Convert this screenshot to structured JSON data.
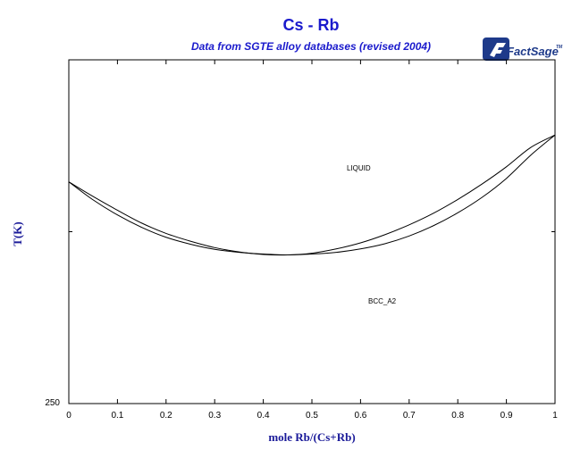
{
  "chart_data": {
    "type": "line",
    "title": "Cs - Rb",
    "subtitle": "Data from SGTE alloy databases (revised 2004)",
    "xlabel": "mole Rb/(Cs+Rb)",
    "ylabel": "T(K)",
    "xlim": [
      0,
      1
    ],
    "ylim": [
      250,
      330
    ],
    "x_ticks": [
      "0",
      "0.1",
      "0.2",
      "0.3",
      "0.4",
      "0.5",
      "0.6",
      "0.7",
      "0.8",
      "0.9",
      "1"
    ],
    "y_tick_labels": [
      "250"
    ],
    "grid": false,
    "legend": "none",
    "region_labels": [
      "LIQUID",
      "BCC_A2"
    ],
    "series": [
      {
        "x": [
          0,
          0.05,
          0.1,
          0.15,
          0.2,
          0.25,
          0.3,
          0.35,
          0.4,
          0.45,
          0.5,
          0.55,
          0.6,
          0.65,
          0.7,
          0.75,
          0.8,
          0.85,
          0.9,
          0.95,
          1.0
        ],
        "values": [
          301.6,
          298.2,
          295.0,
          292.0,
          289.6,
          287.8,
          286.3,
          285.3,
          284.7,
          284.6,
          285.0,
          286.0,
          287.4,
          289.3,
          291.6,
          294.3,
          297.5,
          301.1,
          305.1,
          309.6,
          312.5
        ]
      },
      {
        "x": [
          0,
          0.05,
          0.1,
          0.15,
          0.2,
          0.25,
          0.3,
          0.35,
          0.4,
          0.45,
          0.5,
          0.55,
          0.6,
          0.65,
          0.7,
          0.75,
          0.8,
          0.85,
          0.9,
          0.95,
          1.0
        ],
        "values": [
          301.6,
          297.4,
          293.9,
          291.0,
          288.7,
          287.1,
          285.9,
          285.2,
          284.8,
          284.6,
          284.8,
          285.2,
          286.0,
          287.2,
          289.0,
          291.4,
          294.4,
          298.0,
          302.4,
          307.8,
          312.5
        ]
      }
    ]
  },
  "logo": {
    "text": "FactSage",
    "tm": "TM",
    "bg": "#1e3a8a"
  }
}
